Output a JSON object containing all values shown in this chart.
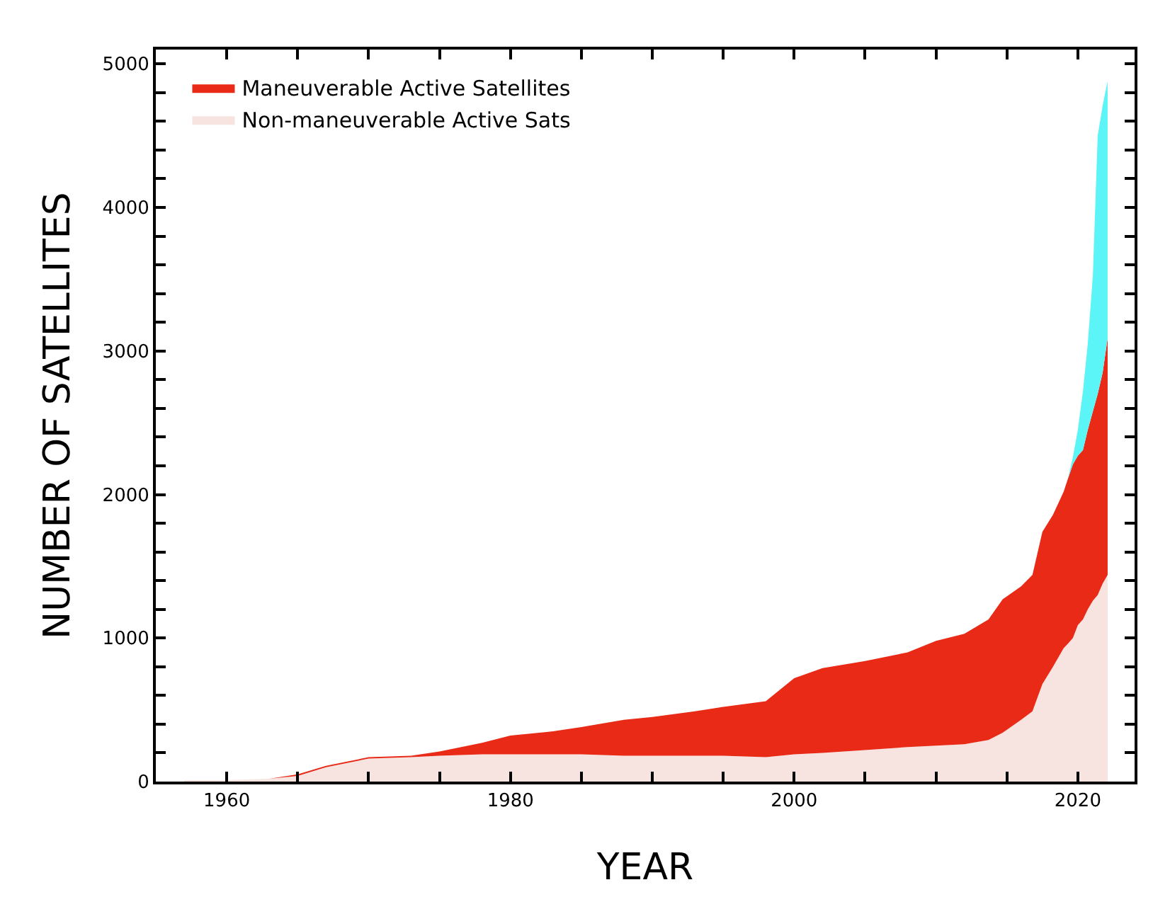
{
  "chart_data": {
    "type": "area",
    "stacked": true,
    "xlabel": "YEAR",
    "ylabel": "NUMBER OF SATELLITES",
    "x": [
      1957,
      1960,
      1963,
      1965,
      1967,
      1970,
      1973,
      1975,
      1978,
      1980,
      1983,
      1985,
      1988,
      1990,
      1993,
      1995,
      1998,
      2000,
      2002,
      2005,
      2008,
      2010,
      2012,
      2013.7,
      2014.7,
      2016,
      2016.8,
      2017.5,
      2018.25,
      2019,
      2019.3,
      2019.65,
      2020,
      2020.36,
      2020.7,
      2021.06,
      2021.4,
      2021.75,
      2022.1
    ],
    "series": [
      {
        "name": "Non-maneuverable Active Sats",
        "color": "#f7e4e1",
        "values": [
          10,
          10,
          20,
          40,
          100,
          160,
          170,
          180,
          190,
          190,
          190,
          190,
          180,
          180,
          180,
          180,
          170,
          190,
          200,
          220,
          240,
          250,
          260,
          290,
          340,
          430,
          490,
          680,
          800,
          930,
          960,
          1000,
          1090,
          1130,
          1200,
          1260,
          1300,
          1380,
          1440
        ]
      },
      {
        "name": "Maneuverable Active Satellites",
        "color": "#e82a16",
        "values": [
          0,
          0,
          0,
          10,
          10,
          10,
          10,
          30,
          80,
          130,
          160,
          190,
          250,
          270,
          310,
          340,
          390,
          530,
          590,
          620,
          660,
          730,
          770,
          840,
          930,
          930,
          950,
          1060,
          1060,
          1090,
          1150,
          1210,
          1180,
          1180,
          1250,
          1320,
          1400,
          1470,
          1650
        ]
      },
      {
        "color": "#5cf5f7",
        "values": [
          0,
          0,
          0,
          0,
          0,
          0,
          0,
          0,
          0,
          0,
          0,
          0,
          0,
          0,
          0,
          0,
          0,
          0,
          0,
          0,
          0,
          0,
          0,
          0,
          0,
          0,
          0,
          0,
          0,
          0,
          0,
          50,
          180,
          410,
          600,
          950,
          1800,
          1860,
          1790
        ]
      }
    ],
    "xlim": [
      1955,
      2024
    ],
    "xticks": [
      1960,
      {
        "value": 1965,
        "label": null
      },
      {
        "value": 1970,
        "label": null
      },
      {
        "value": 1975,
        "label": null
      },
      1980,
      {
        "value": 1985,
        "label": null
      },
      {
        "value": 1990,
        "label": null
      },
      {
        "value": 1995,
        "label": null
      },
      2000,
      {
        "value": 2005,
        "label": null
      },
      {
        "value": 2010,
        "label": null
      },
      {
        "value": 2015,
        "label": null
      },
      2020
    ],
    "ylim": [
      0,
      5100
    ],
    "yticks": [
      0,
      {
        "value": 200,
        "label": null
      },
      {
        "value": 400,
        "label": null
      },
      {
        "value": 600,
        "label": null
      },
      {
        "value": 800,
        "label": null
      },
      1000,
      {
        "value": 1200,
        "label": null
      },
      {
        "value": 1400,
        "label": null
      },
      {
        "value": 1600,
        "label": null
      },
      {
        "value": 1800,
        "label": null
      },
      2000,
      {
        "value": 2200,
        "label": null
      },
      {
        "value": 2400,
        "label": null
      },
      {
        "value": 2600,
        "label": null
      },
      {
        "value": 2800,
        "label": null
      },
      3000,
      {
        "value": 3200,
        "label": null
      },
      {
        "value": 3400,
        "label": null
      },
      {
        "value": 3600,
        "label": null
      },
      {
        "value": 3800,
        "label": null
      },
      4000,
      {
        "value": 4200,
        "label": null
      },
      {
        "value": 4400,
        "label": null
      },
      {
        "value": 4600,
        "label": null
      },
      {
        "value": 4800,
        "label": null
      },
      5000
    ],
    "legend": "top left"
  }
}
